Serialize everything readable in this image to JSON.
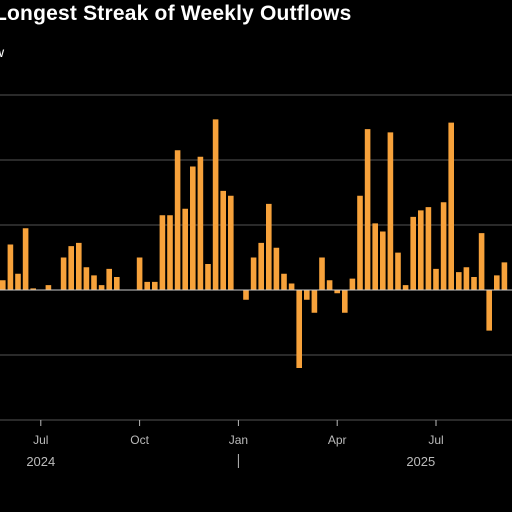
{
  "title": "Longest Streak of Weekly Outflows",
  "subtitle": "w",
  "colors": {
    "bar": "#f7a23b",
    "grid": "#555555",
    "zero": "#cccccc",
    "text": "#bbbbbb"
  },
  "chart_data": {
    "type": "bar",
    "title": "Longest Streak of Weekly Outflows",
    "xlabel": "",
    "ylabel": "",
    "grid": true,
    "ylim": [
      -4,
      6
    ],
    "x_tick_labels": [
      {
        "label": "Jul",
        "index": 5
      },
      {
        "label": "Oct",
        "index": 18
      },
      {
        "label": "Jan",
        "index": 31
      },
      {
        "label": "Apr",
        "index": 44
      },
      {
        "label": "Jul",
        "index": 57
      }
    ],
    "year_labels": [
      {
        "label": "2024",
        "index": 5
      },
      {
        "label": "2025",
        "index": 55
      }
    ],
    "year_separator_index": 31,
    "values": [
      0.3,
      1.4,
      0.5,
      1.9,
      0.05,
      0,
      0.15,
      0,
      1.0,
      1.35,
      1.45,
      0.7,
      0.45,
      0.15,
      0.65,
      0.4,
      0,
      0,
      1.0,
      0.25,
      0.25,
      2.3,
      2.3,
      4.3,
      2.5,
      3.8,
      4.1,
      0.8,
      5.25,
      3.05,
      2.9,
      0,
      -0.3,
      1.0,
      1.45,
      2.65,
      1.3,
      0.5,
      0.2,
      -2.4,
      -0.3,
      -0.7,
      1.0,
      0.3,
      -0.1,
      -0.7,
      0.35,
      2.9,
      4.95,
      2.05,
      1.8,
      4.85,
      1.15,
      0.15,
      2.25,
      2.45,
      2.55,
      0.65,
      2.7,
      5.15,
      0.55,
      0.7,
      0.4,
      1.75,
      -1.25,
      0.45,
      0.85
    ]
  }
}
